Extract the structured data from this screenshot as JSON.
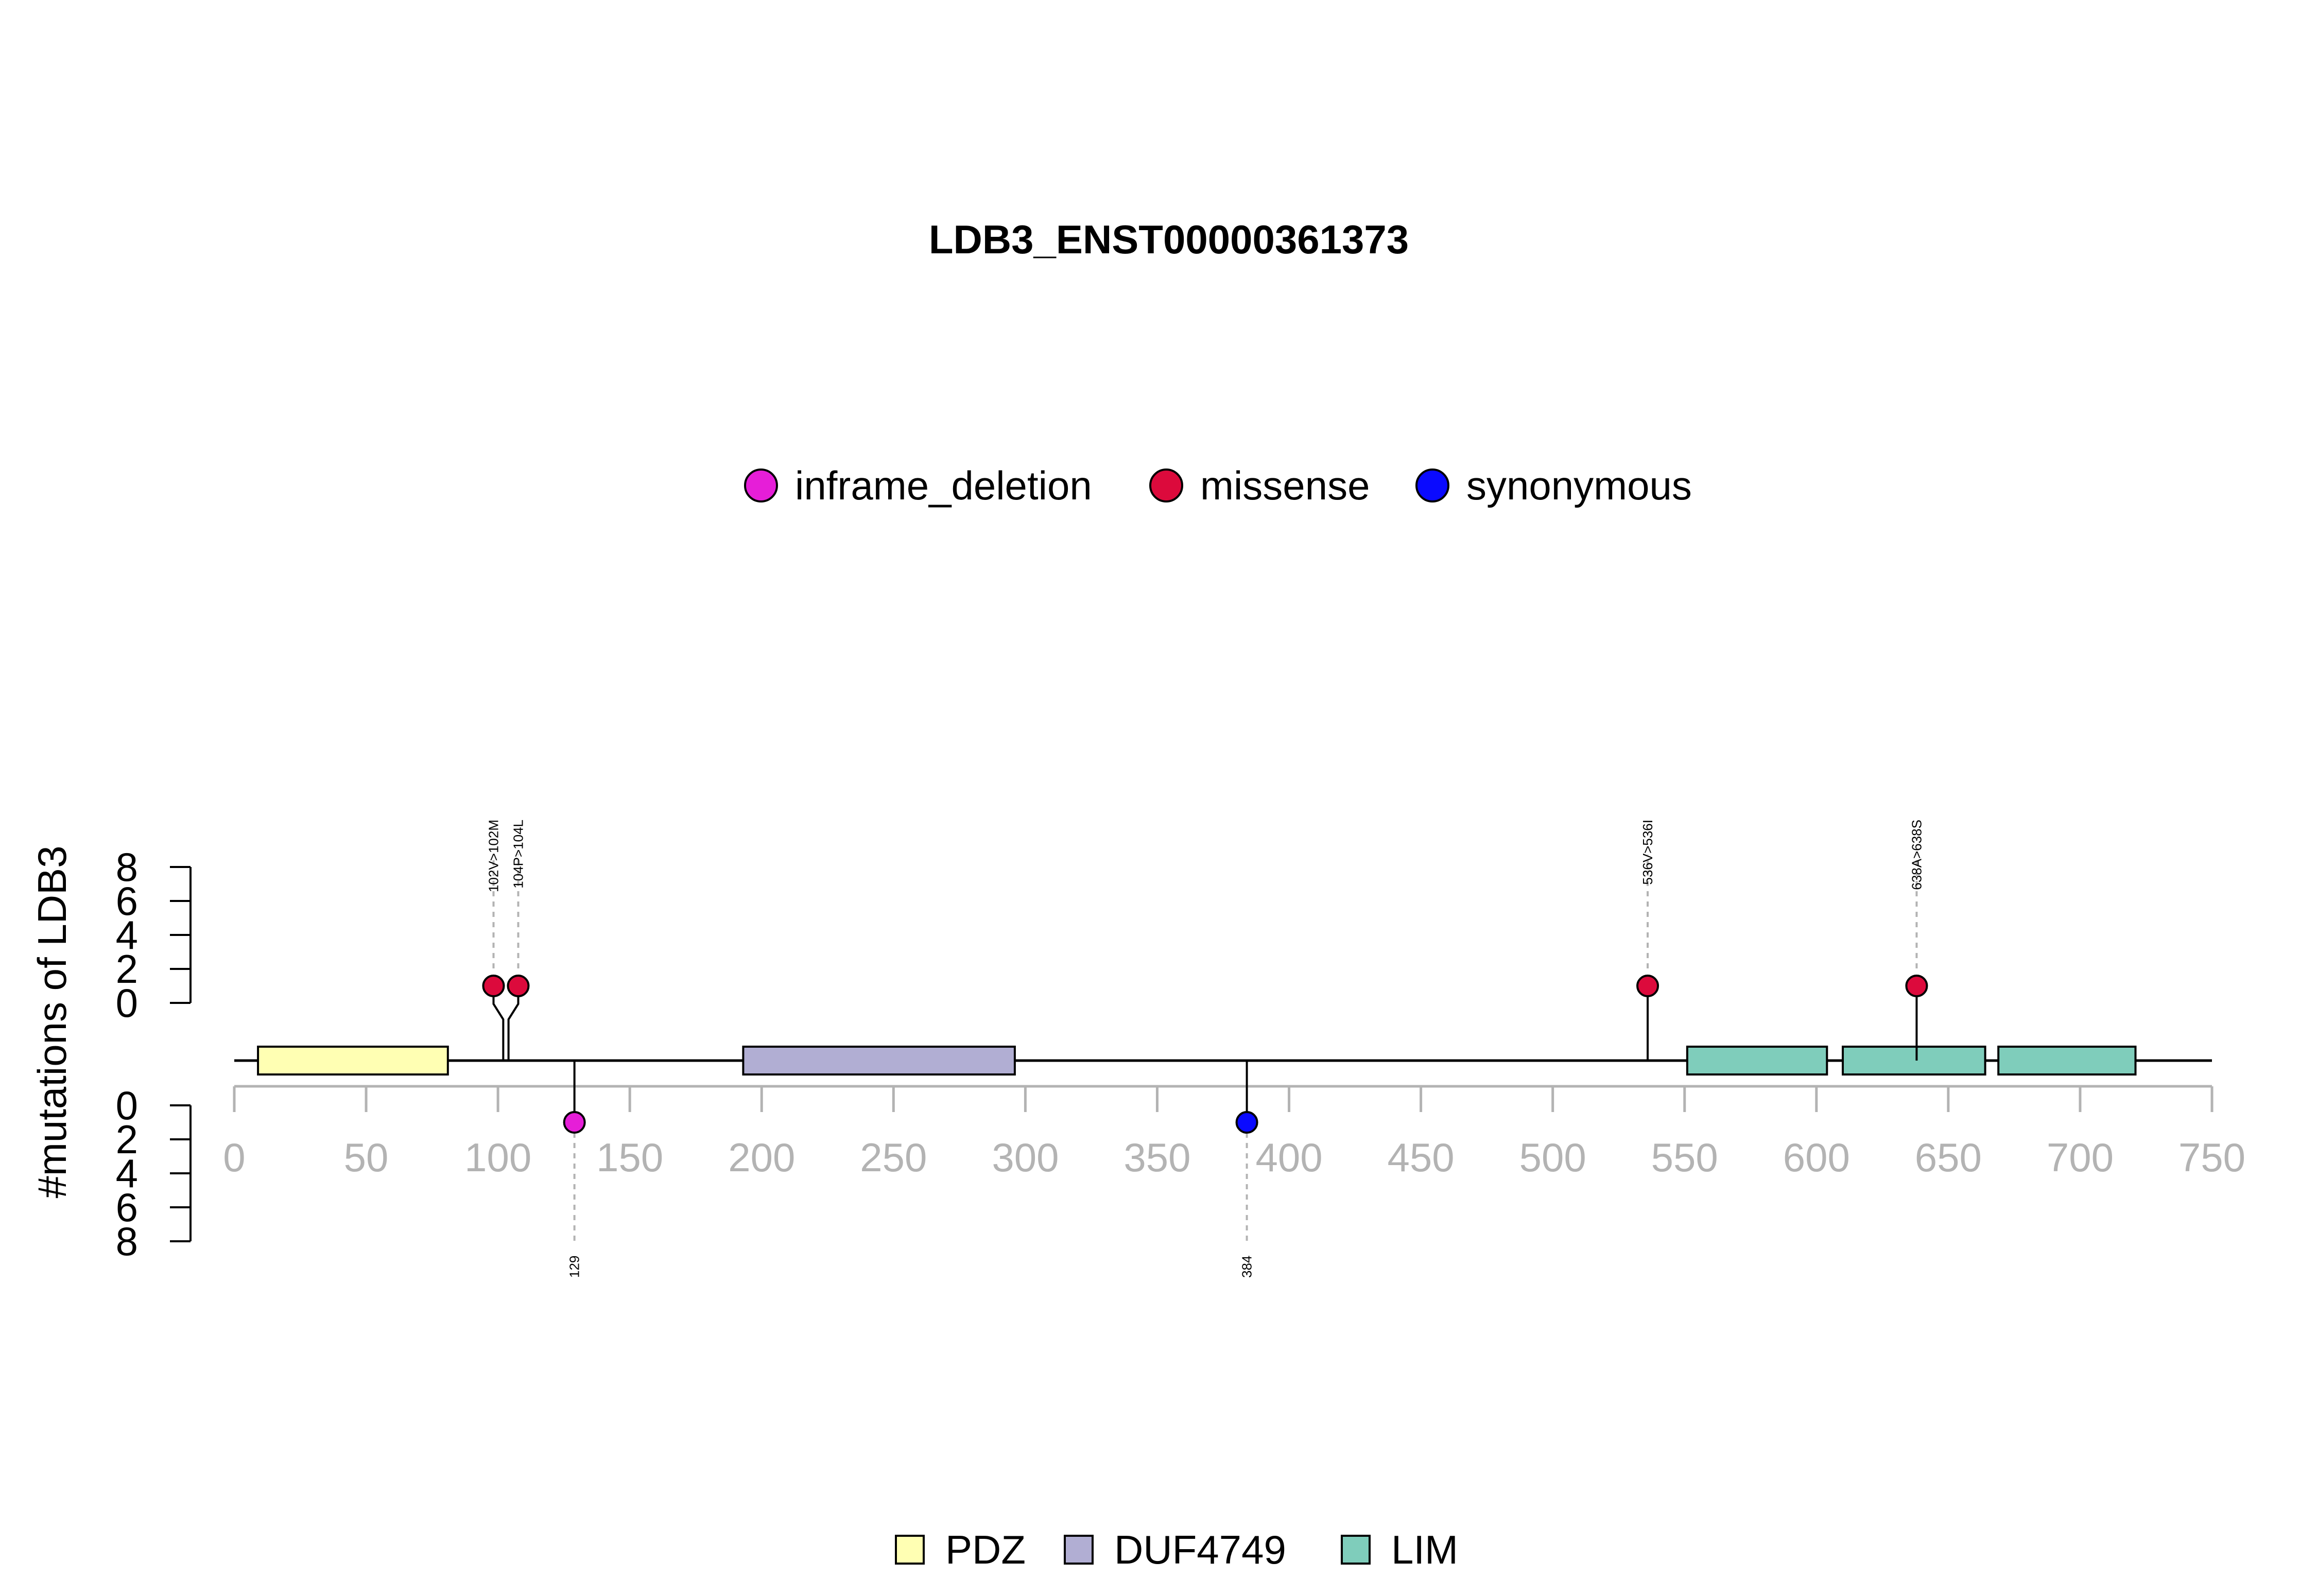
{
  "chart_data": {
    "type": "lollipop",
    "title": "LDB3_ENST00000361373",
    "ylabel": "#mutations of LDB3",
    "xlim": [
      0,
      750
    ],
    "x_ticks": [
      0,
      50,
      100,
      150,
      200,
      250,
      300,
      350,
      400,
      450,
      500,
      550,
      600,
      650,
      700,
      750
    ],
    "y_ticks_top": [
      0,
      2,
      4,
      6,
      8
    ],
    "y_ticks_bottom": [
      0,
      2,
      4,
      6,
      8
    ],
    "protein_length": 750,
    "mutation_types": [
      {
        "name": "inframe_deletion",
        "color": "#e61ed8"
      },
      {
        "name": "missense",
        "color": "#dc0a3c"
      },
      {
        "name": "synonymous",
        "color": "#0a0aff"
      }
    ],
    "domains": [
      {
        "name": "PDZ",
        "start": 9,
        "end": 81,
        "color": "#ffffb3"
      },
      {
        "name": "DUF4749",
        "start": 193,
        "end": 296,
        "color": "#b1aed3"
      },
      {
        "name": "LIM",
        "start": 551,
        "end": 604,
        "color": "#7fcdbb"
      },
      {
        "name": "LIM",
        "start": 610,
        "end": 664,
        "color": "#7fcdbb"
      },
      {
        "name": "LIM",
        "start": 669,
        "end": 721,
        "color": "#7fcdbb"
      }
    ],
    "domain_legend": [
      {
        "name": "PDZ",
        "color": "#ffffb3"
      },
      {
        "name": "DUF4749",
        "color": "#b1aed3"
      },
      {
        "name": "LIM",
        "color": "#7fcdbb"
      }
    ],
    "mutations_top": [
      {
        "position": 102,
        "count": 1,
        "type": "missense",
        "label": "102V>102M"
      },
      {
        "position": 104,
        "count": 1,
        "type": "missense",
        "label": "104P>104L"
      },
      {
        "position": 536,
        "count": 1,
        "type": "missense",
        "label": "536V>536I"
      },
      {
        "position": 638,
        "count": 1,
        "type": "missense",
        "label": "638A>638S"
      }
    ],
    "mutations_bottom": [
      {
        "position": 129,
        "count": 1,
        "type": "inframe_deletion",
        "label": "129"
      },
      {
        "position": 384,
        "count": 1,
        "type": "synonymous",
        "label": "384"
      }
    ]
  }
}
